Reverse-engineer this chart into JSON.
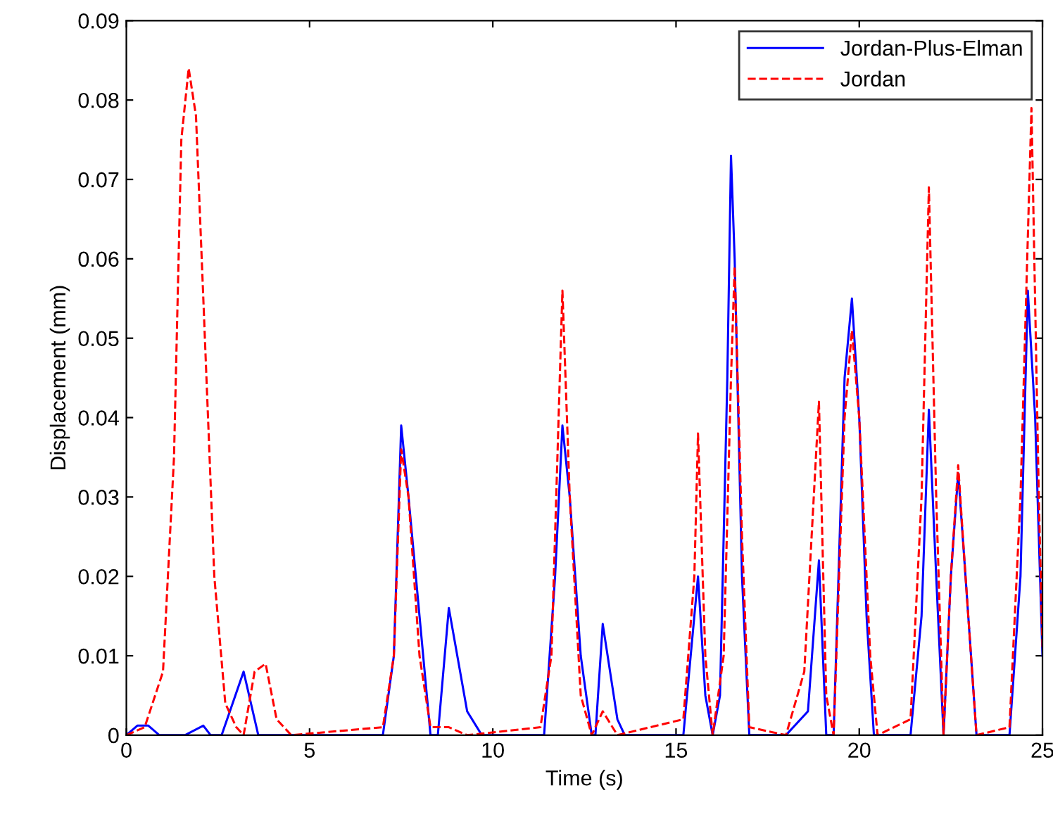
{
  "chart_data": {
    "type": "line",
    "xlabel": "Time (s)",
    "ylabel": "Displacement (mm)",
    "xlim": [
      0,
      25
    ],
    "ylim": [
      0,
      0.09
    ],
    "xticks": [
      0,
      5,
      10,
      15,
      20,
      25
    ],
    "yticks": [
      0,
      0.01,
      0.02,
      0.03,
      0.04,
      0.05,
      0.06,
      0.07,
      0.08,
      0.09
    ],
    "grid": false,
    "legend": "top right",
    "series": [
      {
        "name": "Jordan-Plus-Elman",
        "color": "#0000ff",
        "line_style": "solid",
        "x": [
          0,
          0.3,
          0.6,
          0.9,
          1.6,
          2.1,
          2.3,
          2.6,
          3.2,
          3.6,
          7.0,
          7.3,
          7.5,
          7.7,
          8.0,
          8.3,
          8.5,
          8.8,
          9.3,
          9.7,
          11.4,
          11.7,
          11.9,
          12.1,
          12.4,
          12.7,
          12.8,
          13.0,
          13.4,
          13.6,
          15.2,
          15.6,
          15.8,
          16.0,
          16.2,
          16.4,
          16.5,
          16.6,
          16.8,
          17.0,
          18.0,
          18.6,
          18.9,
          19.1,
          19.3,
          19.6,
          19.8,
          20.0,
          20.2,
          20.4,
          21.4,
          21.7,
          21.9,
          22.1,
          22.3,
          22.5,
          22.7,
          22.9,
          23.2,
          24.1,
          24.4,
          24.6,
          24.8,
          25
        ],
        "values": [
          0,
          0.0012,
          0.0012,
          0,
          0,
          0.0012,
          0,
          0,
          0.008,
          0,
          0,
          0.01,
          0.039,
          0.03,
          0.015,
          0,
          0,
          0.016,
          0.003,
          0,
          0,
          0.02,
          0.039,
          0.03,
          0.01,
          0,
          0,
          0.014,
          0.002,
          0,
          0,
          0.02,
          0.005,
          0,
          0.005,
          0.045,
          0.073,
          0.06,
          0.02,
          0,
          0,
          0.003,
          0.022,
          0,
          0,
          0.045,
          0.055,
          0.04,
          0.015,
          0,
          0,
          0.015,
          0.041,
          0.02,
          0,
          0.02,
          0.033,
          0.02,
          0,
          0,
          0.02,
          0.056,
          0.04,
          0.01
        ]
      },
      {
        "name": "Jordan",
        "color": "#ff0000",
        "line_style": "dashed",
        "x": [
          0,
          0.5,
          1.0,
          1.3,
          1.5,
          1.7,
          1.9,
          2.1,
          2.4,
          2.7,
          3.0,
          3.2,
          3.5,
          3.8,
          4.1,
          4.5,
          7.0,
          7.3,
          7.5,
          7.7,
          8.0,
          8.3,
          8.8,
          9.3,
          11.3,
          11.6,
          11.9,
          12.1,
          12.4,
          12.7,
          13.0,
          13.4,
          15.2,
          15.5,
          15.6,
          15.8,
          16.0,
          16.3,
          16.5,
          16.6,
          16.8,
          17.0,
          18.0,
          18.5,
          18.9,
          19.1,
          19.3,
          19.6,
          19.8,
          20.0,
          20.3,
          20.5,
          21.4,
          21.7,
          21.9,
          22.1,
          22.3,
          22.5,
          22.7,
          22.9,
          23.2,
          24.1,
          24.4,
          24.7,
          24.9,
          25
        ],
        "values": [
          0,
          0.001,
          0.008,
          0.035,
          0.075,
          0.084,
          0.078,
          0.055,
          0.02,
          0.004,
          0.001,
          0,
          0.008,
          0.009,
          0.002,
          0,
          0.001,
          0.01,
          0.036,
          0.03,
          0.01,
          0.001,
          0.001,
          0,
          0.001,
          0.01,
          0.056,
          0.03,
          0.005,
          0,
          0.003,
          0,
          0.002,
          0.02,
          0.038,
          0.01,
          0,
          0.01,
          0.045,
          0.059,
          0.025,
          0.001,
          0,
          0.008,
          0.042,
          0.005,
          0,
          0.04,
          0.051,
          0.04,
          0.01,
          0,
          0.002,
          0.03,
          0.069,
          0.03,
          0,
          0.02,
          0.034,
          0.02,
          0,
          0.001,
          0.03,
          0.079,
          0.03,
          0.011
        ]
      }
    ]
  }
}
